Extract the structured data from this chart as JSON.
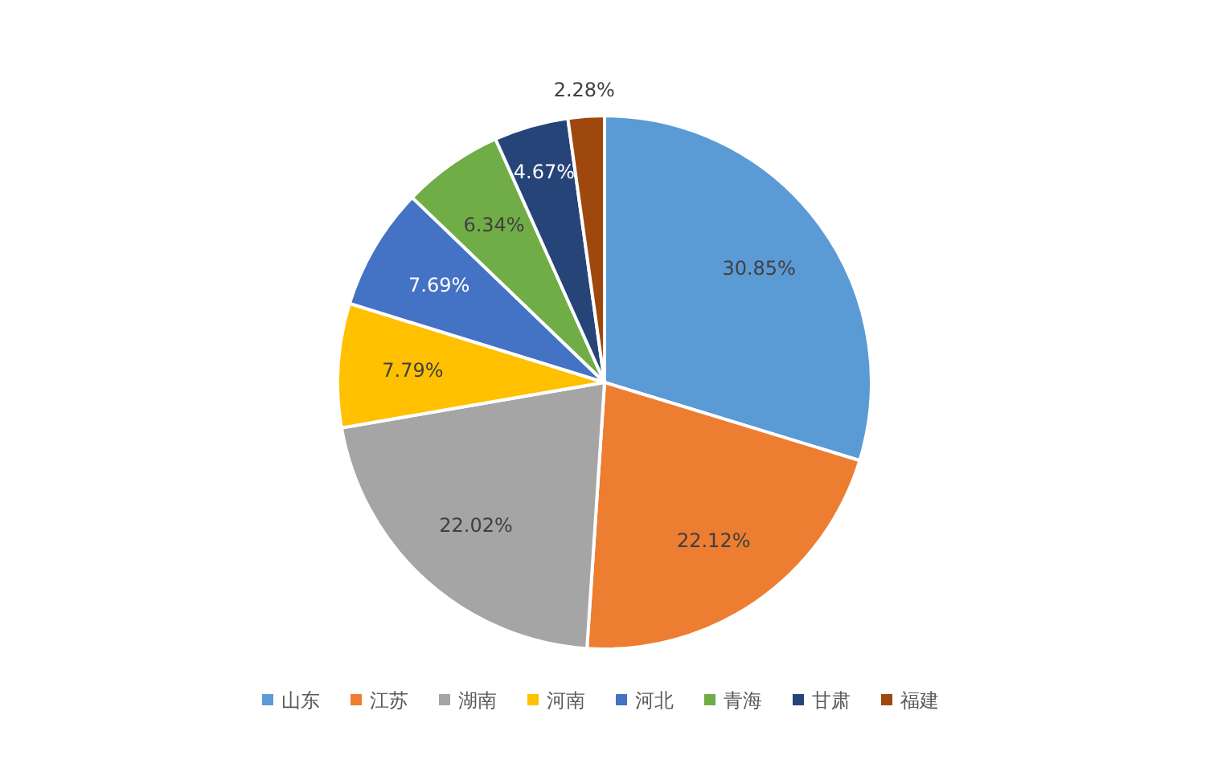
{
  "chart_data": {
    "type": "pie",
    "categories": [
      "山东",
      "江苏",
      "湖南",
      "河南",
      "河北",
      "青海",
      "甘肃",
      "福建"
    ],
    "values": [
      30.85,
      22.12,
      22.02,
      7.79,
      7.69,
      6.34,
      4.67,
      2.28
    ],
    "colors": [
      "#5b9bd5",
      "#ed7d31",
      "#a5a5a5",
      "#ffc000",
      "#4472c4",
      "#70ad47",
      "#264478",
      "#9e480e"
    ],
    "value_labels": [
      "30.85%",
      "22.12%",
      "22.02%",
      "7.79%",
      "7.69%",
      "6.34%",
      "4.67%",
      "2.28%"
    ],
    "legend": "bottom"
  }
}
